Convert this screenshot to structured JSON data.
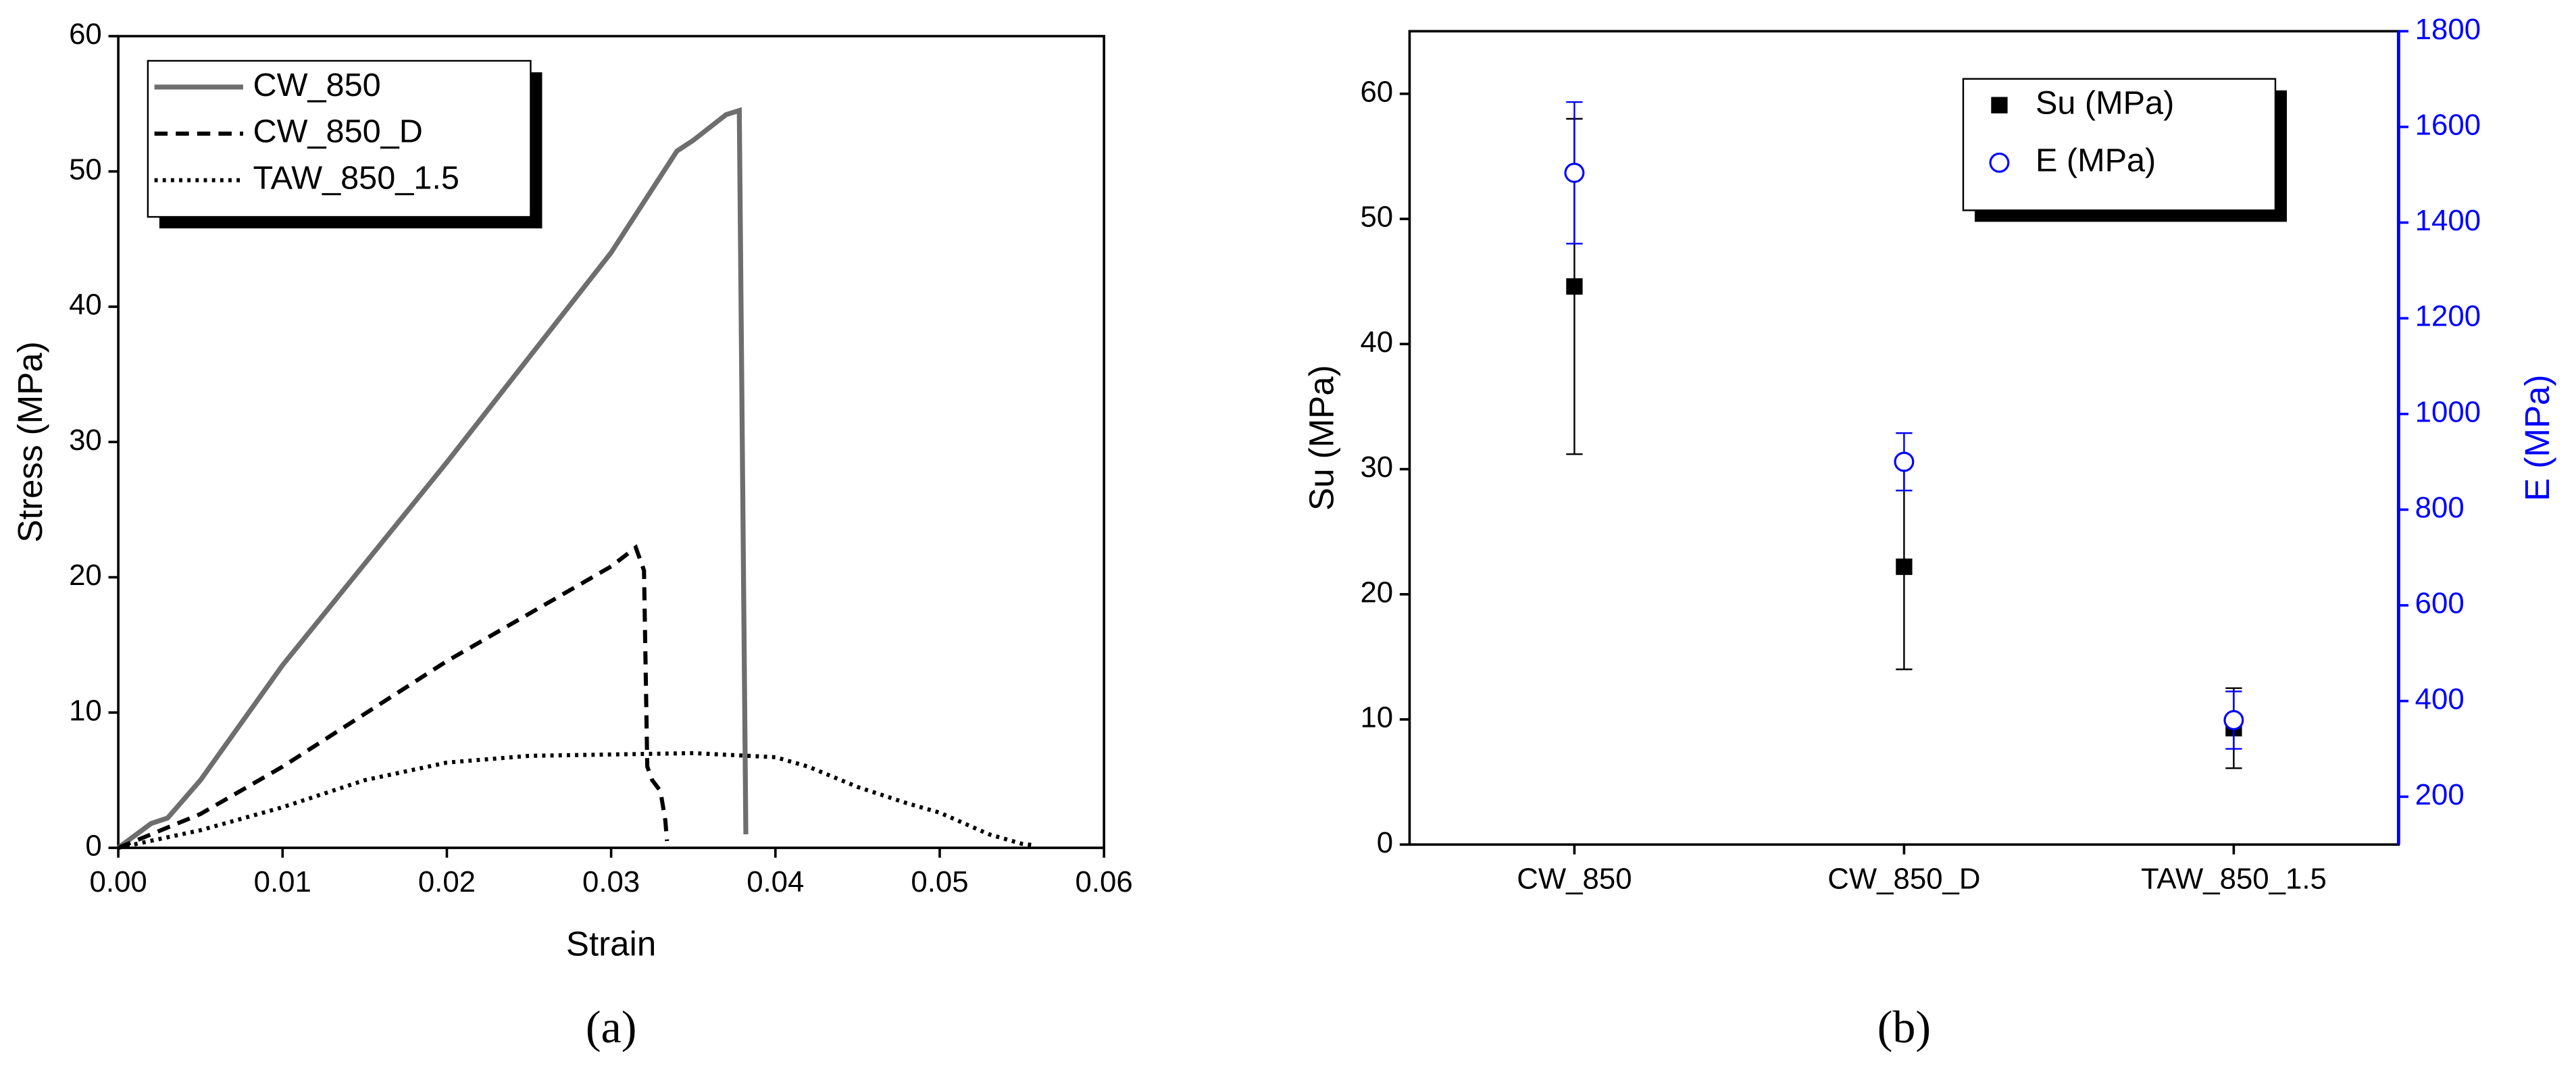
{
  "chart_data": [
    {
      "type": "line",
      "caption": "(a)",
      "x_label": "Strain",
      "y_label": "Stress (MPa)",
      "xlim": [
        0,
        0.06
      ],
      "xticks": [
        {
          "value": 0,
          "label": "0.00"
        },
        {
          "value": 0.01,
          "label": "0.01"
        },
        {
          "value": 0.02,
          "label": "0.02"
        },
        {
          "value": 0.03,
          "label": "0.03"
        },
        {
          "value": 0.04,
          "label": "0.04"
        },
        {
          "value": 0.05,
          "label": "0.05"
        },
        {
          "value": 0.06,
          "label": "0.06"
        }
      ],
      "ylim": [
        0,
        60
      ],
      "yticks": [
        0,
        10,
        20,
        30,
        40,
        50,
        60
      ],
      "legend": "top-left",
      "series": [
        {
          "name": "CW_850",
          "color": "#6e6e6e",
          "line_style": "solid",
          "x": [
            0,
            0.002,
            0.003,
            0.005,
            0.01,
            0.02,
            0.03,
            0.034,
            0.035,
            0.037,
            0.0378,
            0.0382
          ],
          "values": [
            0,
            1.8,
            2.2,
            5,
            13.5,
            28.5,
            44,
            51.5,
            52.3,
            54.2,
            54.5,
            1
          ]
        },
        {
          "name": "CW_850_D",
          "color": "#000000",
          "line_style": "dashed",
          "x": [
            0,
            0.005,
            0.01,
            0.02,
            0.03,
            0.0315,
            0.032,
            0.0322,
            0.0325,
            0.033,
            0.0333,
            0.0334
          ],
          "values": [
            0,
            2.5,
            6,
            13.8,
            20.8,
            22.2,
            20.5,
            6,
            5,
            4.2,
            2,
            0.5
          ]
        },
        {
          "name": "TAW_850_1.5",
          "color": "#000000",
          "line_style": "dotted",
          "x": [
            0,
            0.005,
            0.01,
            0.015,
            0.02,
            0.025,
            0.03,
            0.035,
            0.04,
            0.042,
            0.045,
            0.048,
            0.05,
            0.053,
            0.055,
            0.0557
          ],
          "values": [
            0,
            1.3,
            3,
            5,
            6.3,
            6.8,
            6.9,
            7,
            6.7,
            6,
            4.5,
            3.3,
            2.6,
            1,
            0.3,
            0.2
          ]
        }
      ]
    },
    {
      "type": "scatter",
      "caption": "(b)",
      "y_label": "Su (MPa)",
      "y2_label": "E (MPa)",
      "categories": [
        "CW_850",
        "CW_850_D",
        "TAW_850_1.5"
      ],
      "ylim": [
        0,
        65
      ],
      "yticks": [
        0,
        10,
        20,
        30,
        40,
        50,
        60
      ],
      "y2lim": [
        100,
        1800
      ],
      "y2ticks": [
        200,
        400,
        600,
        800,
        1000,
        1200,
        1400,
        1600,
        1800
      ],
      "y2_color": "#0000ff",
      "legend": "top-right",
      "series": [
        {
          "name": "Su (MPa)",
          "color": "#000000",
          "marker": "filled-square",
          "values": [
            44.6,
            22.2,
            9.3
          ],
          "errors": [
            13.4,
            8.2,
            3.2
          ]
        },
        {
          "name": "E (MPa)",
          "color": "#0000ff",
          "marker": "open-circle",
          "axis": "y2",
          "values": [
            1504,
            900,
            360
          ],
          "errors": [
            148,
            60,
            60
          ]
        }
      ]
    }
  ]
}
